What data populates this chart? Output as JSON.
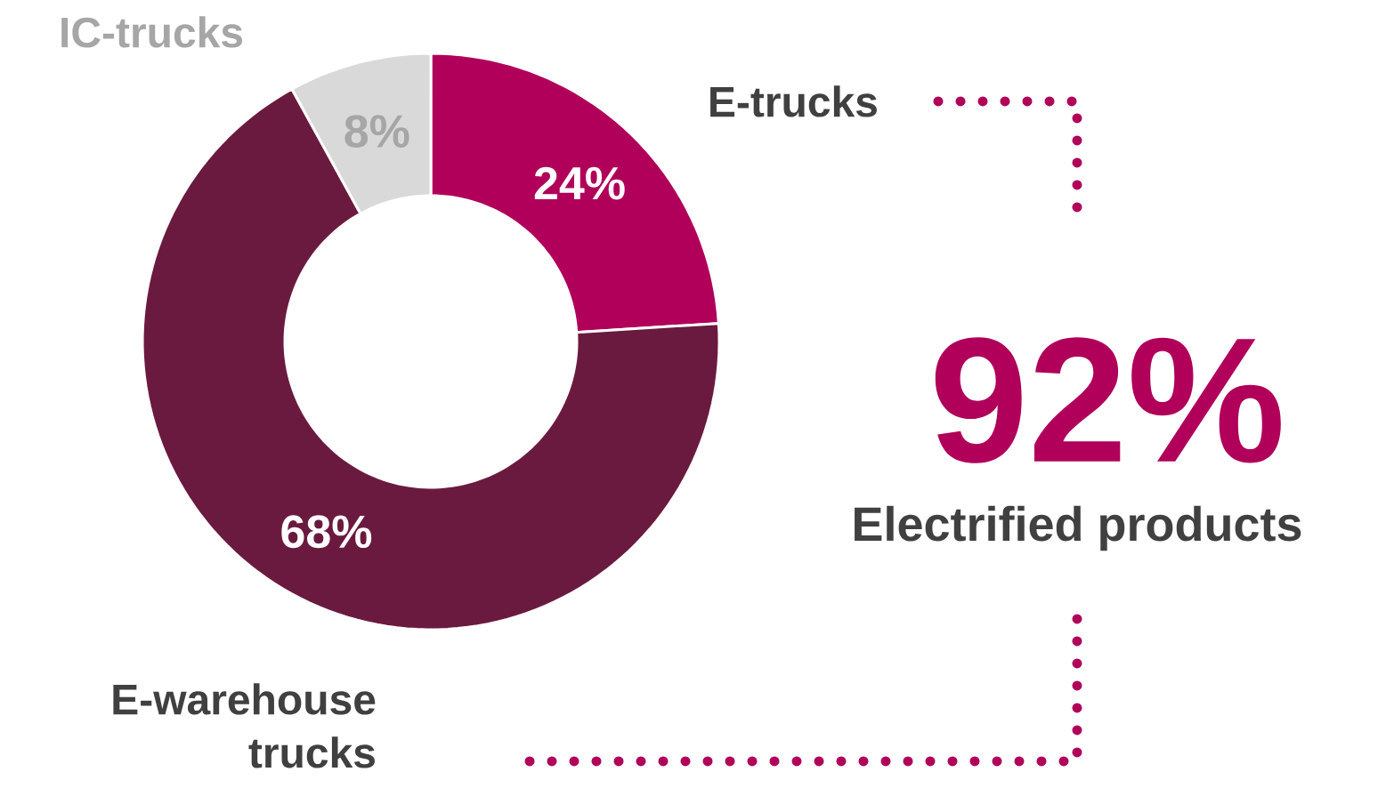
{
  "chart_data": {
    "type": "donut",
    "categories": [
      "E-trucks",
      "E-warehouse trucks",
      "IC-trucks"
    ],
    "values": [
      24,
      68,
      8
    ],
    "colors": [
      "#b0005a",
      "#6b1a3f",
      "#d9d9d9"
    ],
    "value_labels": [
      "24%",
      "68%",
      "8%"
    ],
    "annotations": [
      "92%",
      "Electrified products"
    ]
  }
}
